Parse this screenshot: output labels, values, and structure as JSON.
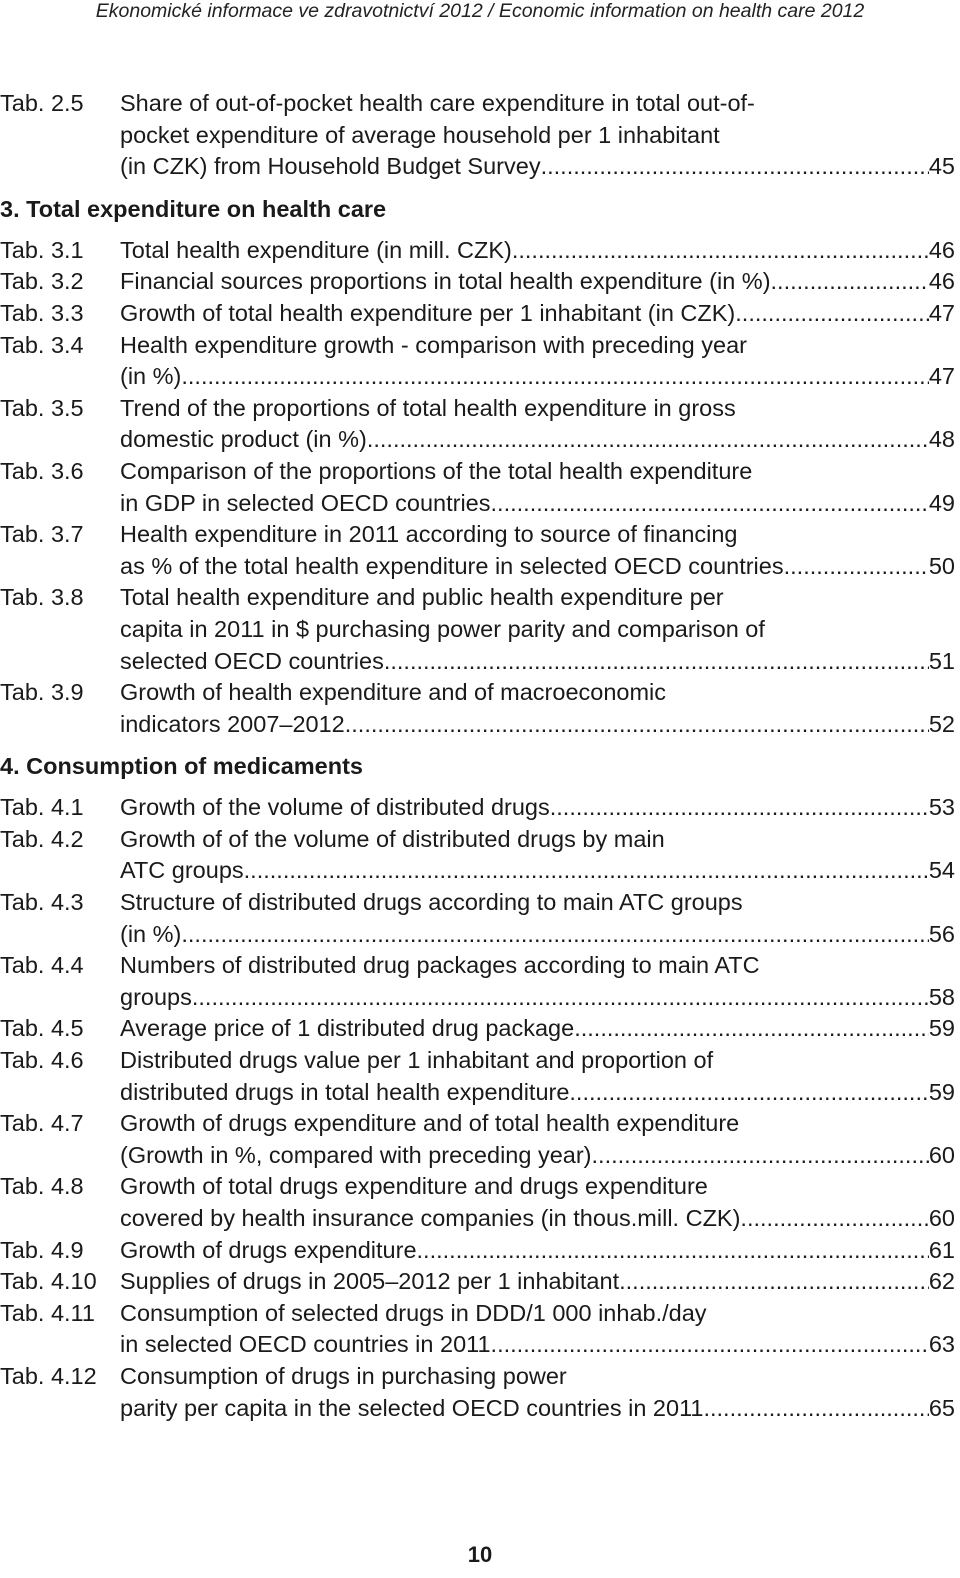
{
  "header": "Ekonomické informace ve zdravotnictví 2012  /  Economic information on health care 2012",
  "items": [
    {
      "type": "entry",
      "num": "Tab. 2.5",
      "lines": [
        "Share of out-of-pocket health care expenditure in total out-of-",
        "pocket expenditure of average household per 1 inhabitant",
        "(in CZK) from Household Budget Survey"
      ],
      "page": "45"
    },
    {
      "type": "section",
      "text": "3.  Total expenditure on health care"
    },
    {
      "type": "entry",
      "num": "Tab. 3.1",
      "lines": [
        "Total health expenditure (in mill. CZK)"
      ],
      "page": "46"
    },
    {
      "type": "entry",
      "num": "Tab. 3.2",
      "lines": [
        "Financial sources proportions in total health expenditure (in %)"
      ],
      "page": "46"
    },
    {
      "type": "entry",
      "num": "Tab. 3.3",
      "lines": [
        "Growth of total health expenditure per 1 inhabitant (in CZK)"
      ],
      "page": "47"
    },
    {
      "type": "entry",
      "num": "Tab. 3.4",
      "lines": [
        "Health expenditure growth - comparison with preceding year",
        "(in %)"
      ],
      "page": "47"
    },
    {
      "type": "entry",
      "num": "Tab. 3.5",
      "lines": [
        "Trend of the proportions of total health expenditure in gross",
        "domestic product (in %)"
      ],
      "page": "48"
    },
    {
      "type": "entry",
      "num": "Tab. 3.6",
      "lines": [
        "Comparison of the proportions of the total health expenditure",
        "in GDP in selected OECD countries"
      ],
      "page": "49"
    },
    {
      "type": "entry",
      "num": "Tab. 3.7",
      "lines": [
        "Health expenditure in 2011 according to source of financing",
        "as % of the total health expenditure in selected OECD countries"
      ],
      "page": "50"
    },
    {
      "type": "entry",
      "num": "Tab. 3.8",
      "lines": [
        "Total health expenditure and public health expenditure per",
        "capita in 2011 in $ purchasing power parity and comparison of",
        "selected OECD countries"
      ],
      "page": "51"
    },
    {
      "type": "entry",
      "num": "Tab. 3.9",
      "lines": [
        "Growth of health expenditure and of macroeconomic",
        "indicators 2007–2012"
      ],
      "page": "52"
    },
    {
      "type": "section",
      "text": "4.  Consumption of medicaments"
    },
    {
      "type": "entry",
      "num": "Tab. 4.1",
      "lines": [
        "Growth of the volume of distributed drugs"
      ],
      "page": "53"
    },
    {
      "type": "entry",
      "num": "Tab. 4.2",
      "lines": [
        "Growth of of the volume of distributed drugs by main",
        "ATC groups"
      ],
      "page": "54"
    },
    {
      "type": "entry",
      "num": "Tab. 4.3",
      "lines": [
        "Structure of distributed drugs according to main ATC groups",
        "(in %)"
      ],
      "page": "56"
    },
    {
      "type": "entry",
      "num": "Tab. 4.4",
      "lines": [
        "Numbers of distributed drug packages according to main ATC",
        "groups"
      ],
      "page": "58"
    },
    {
      "type": "entry",
      "num": "Tab. 4.5",
      "lines": [
        "Average price of 1 distributed drug package"
      ],
      "page": "59"
    },
    {
      "type": "entry",
      "num": "Tab. 4.6",
      "lines": [
        "Distributed drugs value per 1 inhabitant and proportion of",
        "distributed drugs in total health expenditure"
      ],
      "page": "59"
    },
    {
      "type": "entry",
      "num": "Tab. 4.7",
      "lines": [
        "Growth of drugs expenditure and of total health expenditure",
        "(Growth in %, compared with preceding year)"
      ],
      "page": "60"
    },
    {
      "type": "entry",
      "num": "Tab. 4.8",
      "lines": [
        "Growth of total drugs expenditure and drugs expenditure",
        "covered by health insurance companies (in thous.mill. CZK)"
      ],
      "page": "60"
    },
    {
      "type": "entry",
      "num": "Tab. 4.9",
      "lines": [
        "Growth of drugs expenditure"
      ],
      "page": "61"
    },
    {
      "type": "entry",
      "num": "Tab. 4.10",
      "lines": [
        "Supplies of drugs in 2005–2012 per 1 inhabitant"
      ],
      "page": "62"
    },
    {
      "type": "entry",
      "num": "Tab. 4.11",
      "lines": [
        "Consumption of selected drugs in DDD/1 000 inhab./day",
        "in selected OECD countries in 2011"
      ],
      "page": "63"
    },
    {
      "type": "entry",
      "num": "Tab. 4.12",
      "lines": [
        "Consumption of drugs in purchasing power",
        "parity per capita in the selected OECD countries in 2011"
      ],
      "page": "65"
    }
  ],
  "page_number": "10"
}
